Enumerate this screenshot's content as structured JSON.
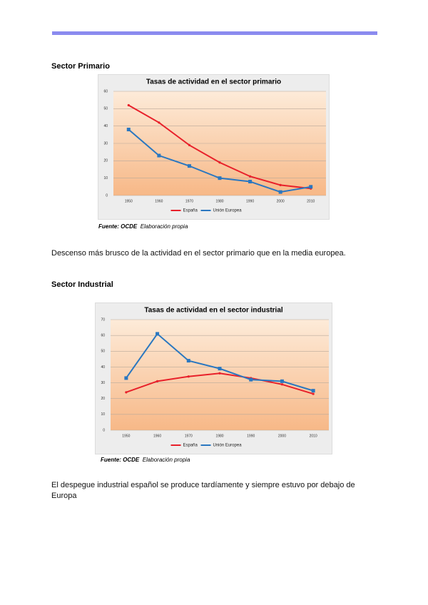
{
  "sections": [
    {
      "heading": "Sector Primario",
      "source_label": "Fuente: OCDE",
      "source_text": "Elaboración propia",
      "paragraph": "Descenso más brusco de la actividad en el sector primario que en la media europea."
    },
    {
      "heading": "Sector Industrial",
      "source_label": "Fuente: OCDE",
      "source_text": "Elaboración propia",
      "paragraph": "El despegue industrial español se produce tardíamente y siempre estuvo por debajo de Europa"
    }
  ],
  "chart_data": [
    {
      "type": "line",
      "title": "Tasas de actividad en el sector primario",
      "categories": [
        "1950",
        "1960",
        "1970",
        "1980",
        "1990",
        "2000",
        "2010"
      ],
      "series": [
        {
          "name": "España",
          "color": "#e8202a",
          "values": [
            52,
            42,
            29,
            19,
            11,
            6,
            4
          ]
        },
        {
          "name": "Unión Europea",
          "color": "#2a77c0",
          "values": [
            38,
            23,
            17,
            10,
            8,
            2,
            5
          ]
        }
      ],
      "ylim": [
        0,
        60
      ],
      "yticks": [
        0,
        10,
        20,
        30,
        40,
        50,
        60
      ],
      "grid": true,
      "legend": "bottom"
    },
    {
      "type": "line",
      "title": "Tasas de actividad en el sector industrial",
      "categories": [
        "1950",
        "1960",
        "1970",
        "1980",
        "1990",
        "2000",
        "2010"
      ],
      "series": [
        {
          "name": "España",
          "color": "#e8202a",
          "values": [
            24,
            31,
            34,
            36,
            33,
            29,
            23
          ]
        },
        {
          "name": "Unión Europea",
          "color": "#2a77c0",
          "values": [
            33,
            61,
            44,
            39,
            32,
            31,
            25
          ]
        }
      ],
      "ylim": [
        0,
        70
      ],
      "yticks": [
        0,
        10,
        20,
        30,
        40,
        50,
        60,
        70
      ],
      "grid": true,
      "legend": "bottom"
    }
  ]
}
